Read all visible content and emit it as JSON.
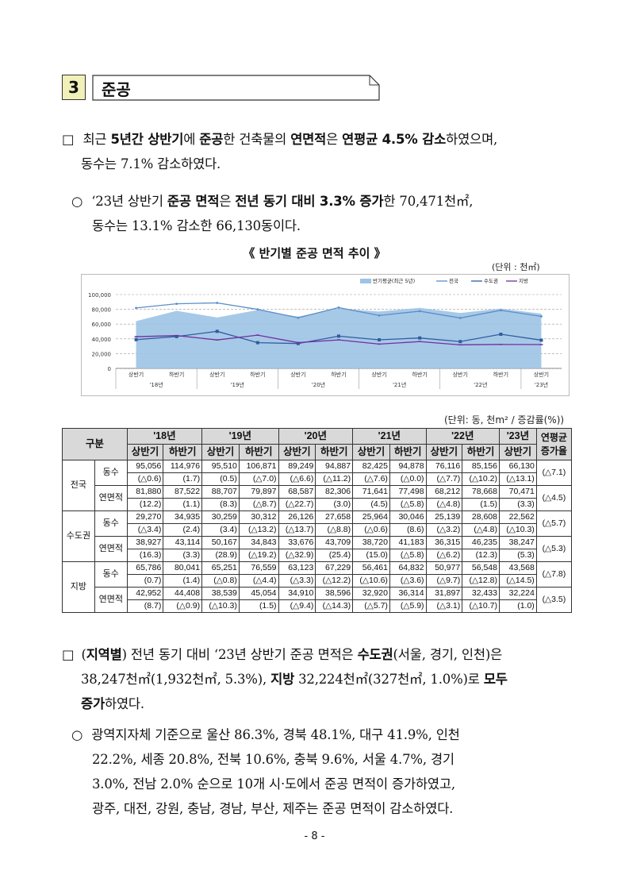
{
  "section": {
    "number": "3",
    "title": "준공"
  },
  "para1": {
    "box": "□",
    "t1": "최근 ",
    "b1": "5년간 상반기",
    "t2": "에 ",
    "b2": "준공",
    "t3": "한 건축물의 ",
    "b3": "연면적",
    "t4": "은 ",
    "b4": "연평균 4.5% 감소",
    "t5": "하였으며,",
    "line2": "동수는 7.1% 감소하였다."
  },
  "para2": {
    "mark": "○",
    "t1": "‘23년 상반기 ",
    "b1": "준공 면적",
    "t2": "은 ",
    "b2": "전년 동기 대비 3.3% 증가",
    "t3": "한 70,471천㎡,",
    "line2": "동수는 13.1% 감소한 66,130동이다."
  },
  "chart_title": "《 반기별 준공 면적 추이 》",
  "chart_unit": "(단위 : 천㎡)",
  "chart_data": {
    "type": "line",
    "categories": [
      "상반기",
      "하반기",
      "상반기",
      "하반기",
      "상반기",
      "하반기",
      "상반기",
      "하반기",
      "상반기",
      "하반기",
      "상반기"
    ],
    "year_groups": [
      "'18년",
      "'19년",
      "'20년",
      "'21년",
      "'22년",
      "'23년"
    ],
    "y_ticks": [
      "100,000",
      "80,000",
      "60,000",
      "40,000",
      "20,000",
      "0"
    ],
    "ylim": [
      0,
      100000
    ],
    "series": [
      {
        "name": "반기평균(최근 5년)",
        "kind": "area",
        "color": "#9dc3e6",
        "values": [
          64000,
          78000,
          69000,
          79000,
          70000,
          81000,
          77000,
          82000,
          75000,
          81000,
          74000
        ]
      },
      {
        "name": "전국",
        "kind": "line",
        "color": "#5b8fc7",
        "values": [
          81880,
          87522,
          88707,
          79897,
          68587,
          82306,
          71641,
          77498,
          68212,
          78668,
          70471
        ]
      },
      {
        "name": "수도권",
        "kind": "line",
        "color": "#2e5e9e",
        "values": [
          38927,
          43114,
          50167,
          34843,
          33676,
          43709,
          38720,
          41183,
          36315,
          46235,
          38247
        ]
      },
      {
        "name": "지방",
        "kind": "line",
        "color": "#7030a0",
        "values": [
          42952,
          44408,
          38539,
          45054,
          34910,
          38596,
          32920,
          36314,
          31897,
          32433,
          32224
        ]
      }
    ]
  },
  "table": {
    "unit": "(단위: 동, 천m² / 증감률(%))",
    "header_label": "구분",
    "years": [
      "'18년",
      "'19년",
      "'20년",
      "'21년",
      "'22년",
      "'23년"
    ],
    "avg_label": [
      "연평균",
      "증가율"
    ],
    "halves": [
      "상반기",
      "하반기",
      "상반기",
      "하반기",
      "상반기",
      "하반기",
      "상반기",
      "하반기",
      "상반기",
      "하반기",
      "상반기"
    ],
    "groups": [
      {
        "name": "전국",
        "rows": [
          {
            "label": "동수",
            "values": [
              "95,056",
              "114,976",
              "95,510",
              "106,871",
              "89,249",
              "94,887",
              "82,425",
              "94,878",
              "76,116",
              "85,156",
              "66,130"
            ],
            "rates": [
              "(△0.6)",
              "(1.7)",
              "(0.5)",
              "(△7.0)",
              "(△6.6)",
              "(△11.2)",
              "(△7.6)",
              "(△0.0)",
              "(△7.7)",
              "(△10.2)",
              "(△13.1)"
            ],
            "avg": "(△7.1)"
          },
          {
            "label": "연면적",
            "values": [
              "81,880",
              "87,522",
              "88,707",
              "79,897",
              "68,587",
              "82,306",
              "71,641",
              "77,498",
              "68,212",
              "78,668",
              "70,471"
            ],
            "rates": [
              "(12.2)",
              "(1.1)",
              "(8.3)",
              "(△8.7)",
              "(△22.7)",
              "(3.0)",
              "(4.5)",
              "(△5.8)",
              "(△4.8)",
              "(1.5)",
              "(3.3)"
            ],
            "avg": "(△4.5)"
          }
        ]
      },
      {
        "name": "수도권",
        "rows": [
          {
            "label": "동수",
            "values": [
              "29,270",
              "34,935",
              "30,259",
              "30,312",
              "26,126",
              "27,658",
              "25,964",
              "30,046",
              "25,139",
              "28,608",
              "22,562"
            ],
            "rates": [
              "(△3.4)",
              "(2.4)",
              "(3.4)",
              "(△13.2)",
              "(△13.7)",
              "(△8.8)",
              "(△0.6)",
              "(8.6)",
              "(△3.2)",
              "(△4.8)",
              "(△10.3)"
            ],
            "avg": "(△5.7)"
          },
          {
            "label": "연면적",
            "values": [
              "38,927",
              "43,114",
              "50,167",
              "34,843",
              "33,676",
              "43,709",
              "38,720",
              "41,183",
              "36,315",
              "46,235",
              "38,247"
            ],
            "rates": [
              "(16.3)",
              "(3.3)",
              "(28.9)",
              "(△19.2)",
              "(△32.9)",
              "(25.4)",
              "(15.0)",
              "(△5.8)",
              "(△6.2)",
              "(12.3)",
              "(5.3)"
            ],
            "avg": "(△5.3)"
          }
        ]
      },
      {
        "name": "지방",
        "rows": [
          {
            "label": "동수",
            "values": [
              "65,786",
              "80,041",
              "65,251",
              "76,559",
              "63,123",
              "67,229",
              "56,461",
              "64,832",
              "50,977",
              "56,548",
              "43,568"
            ],
            "rates": [
              "(0.7)",
              "(1.4)",
              "(△0.8)",
              "(△4.4)",
              "(△3.3)",
              "(△12.2)",
              "(△10.6)",
              "(△3.6)",
              "(△9.7)",
              "(△12.8)",
              "(△14.5)"
            ],
            "avg": "(△7.8)"
          },
          {
            "label": "연면적",
            "values": [
              "42,952",
              "44,408",
              "38,539",
              "45,054",
              "34,910",
              "38,596",
              "32,920",
              "36,314",
              "31,897",
              "32,433",
              "32,224"
            ],
            "rates": [
              "(8.7)",
              "(△0.9)",
              "(△10.3)",
              "(1.5)",
              "(△9.4)",
              "(△14.3)",
              "(△5.7)",
              "(△5.9)",
              "(△3.1)",
              "(△10.7)",
              "(1.0)"
            ],
            "avg": "(△3.5)"
          }
        ]
      }
    ]
  },
  "para3": {
    "box": "□",
    "t1": "(",
    "b1": "지역별",
    "t2": ") 전년 동기 대비 ‘23년 상반기 준공 면적은 ",
    "b2": "수도권",
    "t3": "(서울, 경기, 인천)은",
    "l2a": "38,247천㎡(1,932천㎡, 5.3%), ",
    "l2b": "지방",
    "l2c": " 32,224천㎡(327천㎡, 1.0%)로 ",
    "l2d": "모두",
    "l3a": "증가",
    "l3b": "하였다."
  },
  "para4": {
    "mark": "○",
    "line1": "광역지자체 기준으로 울산 86.3%, 경북 48.1%, 대구 41.9%, 인천",
    "line2": "22.2%, 세종 20.8%, 전북 10.6%, 충북 9.6%, 서울 4.7%, 경기",
    "line3": "3.0%, 전남 2.0% 순으로 10개 시·도에서 준공 면적이 증가하였고,",
    "line4": "광주, 대전, 강원, 충남, 경남, 부산, 제주는 준공 면적이 감소하였다."
  },
  "page_number": "- 8 -"
}
